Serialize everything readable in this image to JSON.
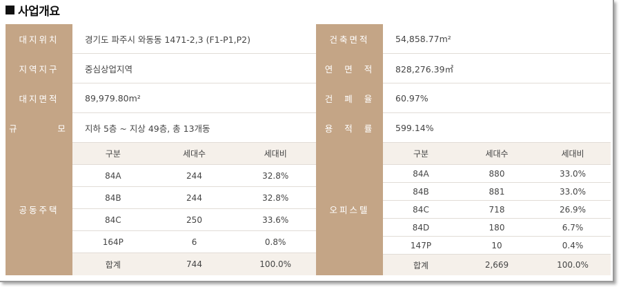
{
  "section": {
    "title": "사업개요"
  },
  "left_rows": [
    {
      "label": "대지위치",
      "value": "경기도 파주시 와동동 1471-2,3 (F1-P1,P2)"
    },
    {
      "label": "지역지구",
      "value": "중심상업지역"
    },
    {
      "label": "대지면적",
      "value": "89,979.80m²"
    },
    {
      "label": "규      모",
      "value": "지하 5층 ~ 지상 49층, 총 13개동"
    }
  ],
  "right_rows": [
    {
      "label": "건축면적",
      "value": "54,858.77m²"
    },
    {
      "label": "연  면  적",
      "value": "828,276.39㎡"
    },
    {
      "label": "건  폐  율",
      "value": "60.97%"
    },
    {
      "label": "용  적  률",
      "value": "599.14%"
    }
  ],
  "housing": {
    "label": "공동주택",
    "headers": [
      "구분",
      "세대수",
      "세대비"
    ],
    "rows": [
      [
        "84A",
        "244",
        "32.8%"
      ],
      [
        "84B",
        "244",
        "32.8%"
      ],
      [
        "84C",
        "250",
        "33.6%"
      ],
      [
        "164P",
        "6",
        "0.8%"
      ]
    ],
    "total": [
      "합계",
      "744",
      "100.0%"
    ]
  },
  "officetel": {
    "label": "오피스텔",
    "headers": [
      "구분",
      "세대수",
      "세대비"
    ],
    "rows": [
      [
        "84A",
        "880",
        "33.0%"
      ],
      [
        "84B",
        "881",
        "33.0%"
      ],
      [
        "84C",
        "718",
        "26.9%"
      ],
      [
        "84D",
        "180",
        "6.7%"
      ],
      [
        "147P",
        "10",
        "0.4%"
      ]
    ],
    "total": [
      "합계",
      "2,669",
      "100.0%"
    ]
  },
  "colors": {
    "label_bg": "#c4a586",
    "label_text": "#ffffff",
    "header_bg": "#f5f0ea",
    "divider": "#e1dcd6"
  }
}
